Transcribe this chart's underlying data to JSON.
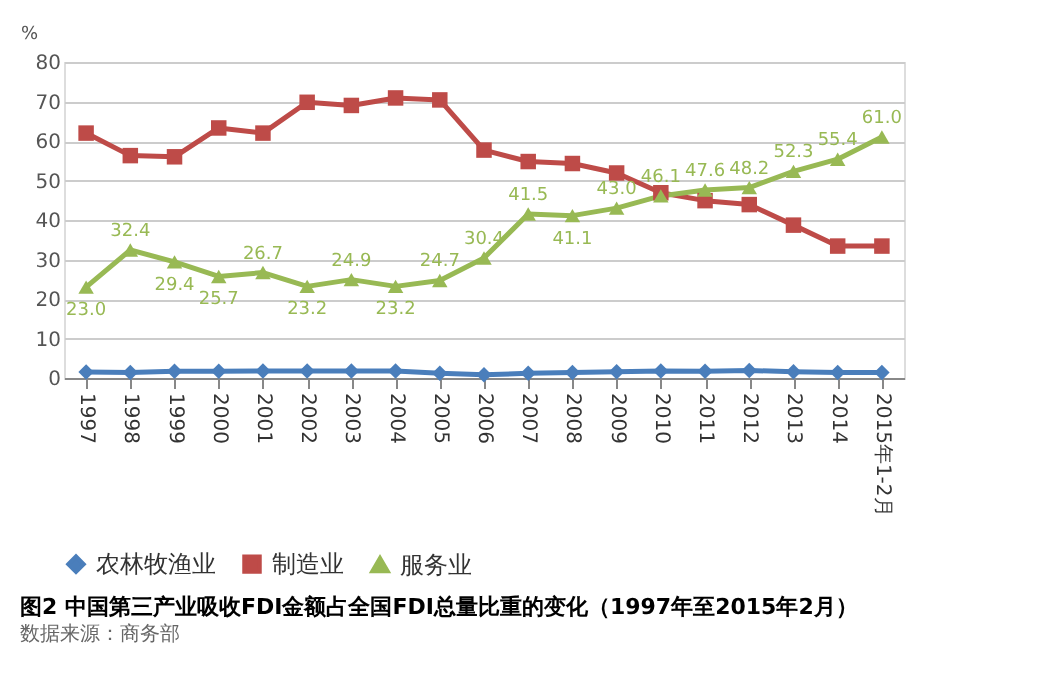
{
  "chart_data": {
    "type": "line",
    "title": "图2 中国第三产业吸收FDI金额占全国FDI总量比重的变化（1997年至2015年2月）",
    "annotations": [
      "数据来源：商务部"
    ],
    "ylabel": "%",
    "categories": [
      "1997",
      "1998",
      "1999",
      "2000",
      "2001",
      "2002",
      "2003",
      "2004",
      "2005",
      "2006",
      "2007",
      "2008",
      "2009",
      "2010",
      "2011",
      "2012",
      "2013",
      "2014",
      "2015年1-2月"
    ],
    "series": [
      {
        "name": "农林牧渔业",
        "color": "#4a7ebb",
        "marker": "diamond",
        "values": [
          1.5,
          1.4,
          1.7,
          1.7,
          1.8,
          1.8,
          1.8,
          1.8,
          1.2,
          0.8,
          1.2,
          1.4,
          1.6,
          1.8,
          1.7,
          1.9,
          1.6,
          1.4,
          1.4
        ]
      },
      {
        "name": "制造业",
        "color": "#be4b48",
        "marker": "square",
        "values": [
          62.0,
          56.3,
          56.0,
          63.3,
          62.0,
          69.8,
          69.0,
          70.9,
          70.4,
          57.7,
          54.8,
          54.3,
          51.9,
          46.9,
          44.9,
          43.9,
          38.7,
          33.4,
          33.4
        ]
      },
      {
        "name": "服务业",
        "color": "#98b954",
        "marker": "triangle",
        "values": [
          23.0,
          32.4,
          29.4,
          25.7,
          26.7,
          23.2,
          24.9,
          23.2,
          24.7,
          30.4,
          41.5,
          41.1,
          43.0,
          46.1,
          47.6,
          48.2,
          52.3,
          55.4,
          61.0
        ],
        "value_labels": [
          "23.0",
          "32.4",
          "29.4",
          "25.7",
          "26.7",
          "23.2",
          "24.9",
          "23.2",
          "24.7",
          "30.4",
          "41.5",
          "41.1",
          "43.0",
          "46.1",
          "47.6",
          "48.2",
          "52.3",
          "55.4",
          "61.0"
        ]
      }
    ],
    "ylim": [
      0,
      80
    ],
    "yticks": [
      0,
      10,
      20,
      30,
      40,
      50,
      60,
      70,
      80
    ],
    "grid": "y",
    "legend": "bottom",
    "line_style": "solid"
  }
}
